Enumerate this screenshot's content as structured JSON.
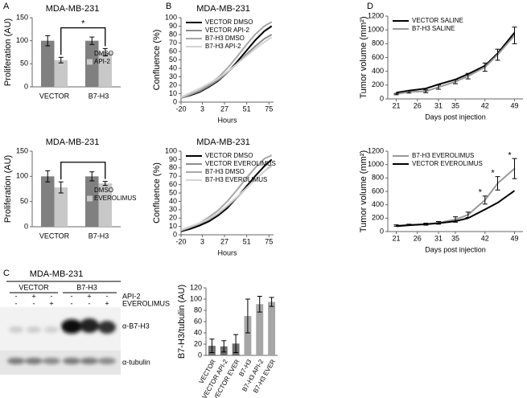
{
  "panel_labels": [
    "A",
    "B",
    "C",
    "D"
  ],
  "blot": {
    "title": "MDA-MB-231",
    "groups": [
      "VECTOR",
      "B7-H3"
    ],
    "rows": [
      {
        "label": "API-2",
        "signs": [
          "-",
          "+",
          "-",
          "-",
          "+",
          "-"
        ]
      },
      {
        "label": "EVEROLIMUS",
        "signs": [
          "-",
          "-",
          "+",
          "-",
          "-",
          "+"
        ]
      }
    ],
    "bands": [
      "α-B7-H3",
      "α-tubulin"
    ]
  },
  "chart_data": [
    {
      "type": "bar",
      "title": "MDA-MB-231",
      "y_label": "Proliferation (AU)",
      "categories": [
        "VECTOR",
        "B7-H3"
      ],
      "series": [
        {
          "name": "DMSO",
          "color": "#808080",
          "values": [
            100,
            100
          ],
          "errors": [
            11,
            8
          ]
        },
        {
          "name": "API-2",
          "color": "#c8c8c8",
          "values": [
            58,
            75
          ],
          "errors": [
            6,
            8
          ]
        }
      ],
      "ylim": [
        0,
        150
      ],
      "yticks": [
        0,
        50,
        100,
        150
      ],
      "legend": "center right",
      "annotations": [
        {
          "text": "*",
          "y": 128
        }
      ]
    },
    {
      "type": "bar",
      "title": "MDA-MB-231",
      "y_label": "Proliferation (AU)",
      "categories": [
        "VECTOR",
        "B7-H3"
      ],
      "series": [
        {
          "name": "DMSO",
          "color": "#808080",
          "values": [
            100,
            100
          ],
          "errors": [
            11,
            9
          ]
        },
        {
          "name": "EVEROLIMUS",
          "color": "#c8c8c8",
          "values": [
            78,
            86
          ],
          "errors": [
            11,
            4
          ]
        }
      ],
      "ylim": [
        0,
        150
      ],
      "yticks": [
        0,
        50,
        100,
        150
      ],
      "legend": "center right",
      "annotations": [
        {
          "text": "",
          "y": 128
        }
      ]
    },
    {
      "type": "line",
      "title": "MDA-MB-231",
      "x_label": "Hours",
      "y_label": "Confluence (%)",
      "x": [
        -20,
        -10,
        0,
        10,
        20,
        30,
        40,
        50,
        60,
        70,
        78
      ],
      "series": [
        {
          "name": "VECTOR DMSO",
          "color": "#000000",
          "values": [
            5,
            8,
            12,
            18,
            25,
            35,
            47,
            60,
            73,
            84,
            90
          ]
        },
        {
          "name": "VECTOR API-2",
          "color": "#8c8c8c",
          "values": [
            5,
            9,
            13,
            19,
            26,
            35,
            45,
            56,
            66,
            75,
            80
          ]
        },
        {
          "name": "B7-H3 DMSO",
          "color": "#a8a8a8",
          "values": [
            5,
            9,
            14,
            21,
            29,
            40,
            53,
            67,
            80,
            90,
            95
          ]
        },
        {
          "name": "B7-H3 API-2",
          "color": "#d4d4d4",
          "values": [
            6,
            11,
            16,
            22,
            28,
            36,
            45,
            54,
            63,
            71,
            77
          ]
        }
      ],
      "xlim": [
        -20,
        80
      ],
      "xticks": [
        -20,
        3,
        27,
        51,
        75
      ],
      "ylim": [
        0,
        100
      ],
      "yticks": [
        0,
        10,
        20,
        30,
        40,
        50,
        60,
        70,
        80,
        90,
        100
      ],
      "legend": "upper left"
    },
    {
      "type": "line",
      "title": "MDA-MB-231",
      "x_label": "Hours",
      "y_label": "Confluence (%)",
      "x": [
        -20,
        -10,
        0,
        10,
        20,
        30,
        40,
        50,
        60,
        70,
        78
      ],
      "series": [
        {
          "name": "VECTOR DMSO",
          "color": "#000000",
          "values": [
            4,
            7,
            11,
            16,
            23,
            32,
            44,
            57,
            70,
            82,
            90
          ]
        },
        {
          "name": "VECTOR EVEROLIMUS",
          "color": "#8c8c8c",
          "values": [
            5,
            9,
            13,
            18,
            25,
            34,
            44,
            55,
            66,
            76,
            83
          ]
        },
        {
          "name": "B7-H3 DMSO",
          "color": "#a8a8a8",
          "values": [
            5,
            9,
            14,
            21,
            29,
            40,
            53,
            67,
            80,
            91,
            95
          ]
        },
        {
          "name": "B7-H3 EVEROLIMUS",
          "color": "#d4d4d4",
          "values": [
            6,
            10,
            14,
            19,
            26,
            35,
            45,
            55,
            66,
            76,
            82
          ]
        }
      ],
      "xlim": [
        -20,
        80
      ],
      "xticks": [
        -20,
        3,
        27,
        51,
        75
      ],
      "ylim": [
        0,
        100
      ],
      "yticks": [
        0,
        10,
        20,
        30,
        40,
        50,
        60,
        70,
        80,
        90,
        100
      ],
      "legend": "upper left"
    },
    {
      "type": "line",
      "x_label": "Days post injection",
      "y_label": "Tumor volume (mm²)",
      "x": [
        21,
        24,
        28,
        31,
        35,
        38,
        42,
        45,
        49
      ],
      "series": [
        {
          "name": "VECTOR SALINE",
          "color": "#000000",
          "values": [
            90,
            120,
            150,
            210,
            280,
            360,
            480,
            660,
            960
          ]
        },
        {
          "name": "B7-H3 SALINE",
          "color": "#999999",
          "values": [
            70,
            100,
            110,
            170,
            250,
            330,
            460,
            640,
            920
          ],
          "errors": [
            10,
            15,
            20,
            30,
            30,
            40,
            60,
            80,
            120
          ]
        }
      ],
      "xlim": [
        19,
        51
      ],
      "xticks": [
        21,
        26,
        31,
        35,
        42,
        49
      ],
      "ylim": [
        0,
        1200
      ],
      "yticks": [
        0,
        200,
        400,
        600,
        800,
        1000,
        1200
      ],
      "legend": "upper left"
    },
    {
      "type": "line",
      "x_label": "Days post injection",
      "y_label": "Tumor volume (mm²)",
      "x": [
        21,
        24,
        28,
        31,
        35,
        38,
        42,
        45,
        49
      ],
      "series": [
        {
          "name": "B7-H3 EVEROLIMUS",
          "color": "#999999",
          "values": [
            90,
            100,
            110,
            130,
            180,
            250,
            470,
            720,
            940
          ],
          "errors": [
            10,
            10,
            15,
            20,
            40,
            40,
            60,
            100,
            150
          ]
        },
        {
          "name": "VECTOR EVEROLIMUS",
          "color": "#000000",
          "values": [
            80,
            95,
            110,
            125,
            155,
            200,
            330,
            430,
            610
          ]
        }
      ],
      "xlim": [
        19,
        51
      ],
      "xticks": [
        21,
        26,
        31,
        35,
        42,
        49
      ],
      "ylim": [
        0,
        1200
      ],
      "yticks": [
        0,
        200,
        400,
        600,
        800,
        1000,
        1200
      ],
      "legend": "upper left",
      "annotations": [
        {
          "text": "*",
          "x": 42,
          "y": 580
        },
        {
          "text": "*",
          "x": 45,
          "y": 870
        },
        {
          "text": "*",
          "x": 49,
          "y": 1130
        }
      ]
    },
    {
      "type": "bar",
      "y_label": "B7-H3/tubulin (AU)",
      "categories": [
        "VECTOR",
        "VECTOR  API-2",
        "VECTOR  EVER",
        "B7-H3",
        "B7-H3  API-2",
        "B7-H3  EVER"
      ],
      "values": [
        17,
        16,
        21,
        70,
        91,
        95
      ],
      "errors": [
        12,
        10,
        16,
        30,
        14,
        8
      ],
      "colors": [
        "#6f6f6f",
        "#6f6f6f",
        "#6f6f6f",
        "#a6a6a6",
        "#a6a6a6",
        "#a6a6a6"
      ],
      "ylim": [
        0,
        120
      ],
      "yticks": [
        0,
        20,
        40,
        60,
        80,
        100,
        120
      ]
    }
  ]
}
